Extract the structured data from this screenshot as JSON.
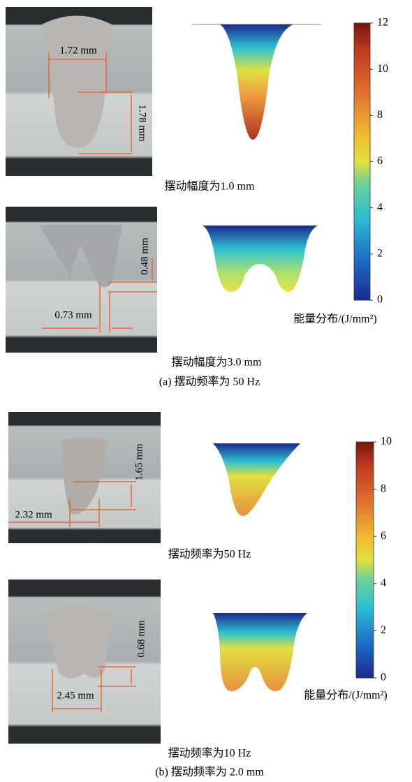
{
  "panel_a": {
    "caption": "(a) 摆动频率为 50 Hz",
    "images": [
      {
        "caption": "摆动幅度为1.0 mm",
        "dims": [
          "1.72 mm",
          "1.78 mm"
        ]
      },
      {
        "caption": "摆动幅度为3.0 mm",
        "dims": [
          "0.48 mm",
          "0.73 mm"
        ]
      }
    ],
    "colorbar": {
      "label": "能量分布/(J/mm²)",
      "lim": [
        0,
        12
      ],
      "ticks": [
        0,
        2,
        4,
        6,
        8,
        10,
        12
      ]
    }
  },
  "panel_b": {
    "caption": "(b) 摆动频率为 2.0 mm",
    "images": [
      {
        "caption": "摆动频率为50 Hz",
        "dims": [
          "1.65 mm",
          "2.32 mm"
        ]
      },
      {
        "caption": "摆动频率为10 Hz",
        "dims": [
          "0.68 mm",
          "2.45 mm"
        ]
      }
    ],
    "colorbar": {
      "label": "能量分布/(J/mm²)",
      "lim": [
        0,
        10
      ],
      "ticks": [
        0,
        2,
        4,
        6,
        8,
        10
      ]
    }
  }
}
